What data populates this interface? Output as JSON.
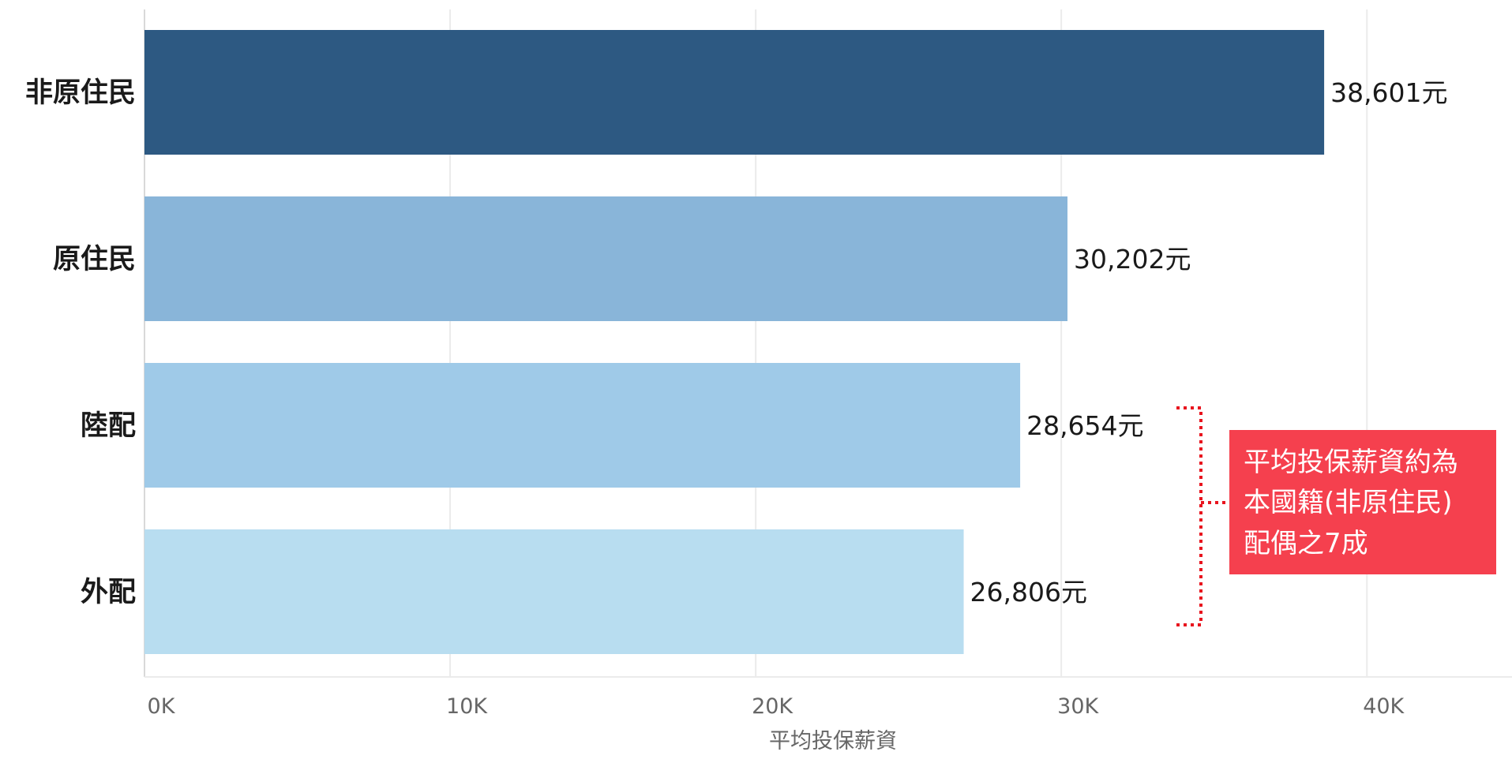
{
  "chart_data": {
    "type": "bar",
    "orientation": "horizontal",
    "categories": [
      "非原住民",
      "原住民",
      "陸配",
      "外配"
    ],
    "values": [
      38601,
      30202,
      28654,
      26806
    ],
    "value_labels": [
      "38,601元",
      "30,202元",
      "28,654元",
      "26,806元"
    ],
    "bar_colors": [
      "#2d5982",
      "#89b5d9",
      "#9fcae8",
      "#b8ddf0"
    ],
    "xlabel": "平均投保薪資",
    "ylabel": "",
    "xlim": [
      0,
      45000
    ],
    "x_ticks": [
      0,
      10000,
      20000,
      30000,
      40000
    ],
    "x_tick_labels": [
      "0K",
      "10K",
      "20K",
      "30K",
      "40K"
    ],
    "grid": "vertical",
    "annotation": {
      "lines": [
        "平均投保薪資約為",
        "本國籍(非原住民)",
        "配偶之7成"
      ],
      "box_color": "#f5404e",
      "text_color": "#ffffff",
      "bracket_color": "#e8141e",
      "applies_to": [
        "陸配",
        "外配"
      ]
    }
  }
}
